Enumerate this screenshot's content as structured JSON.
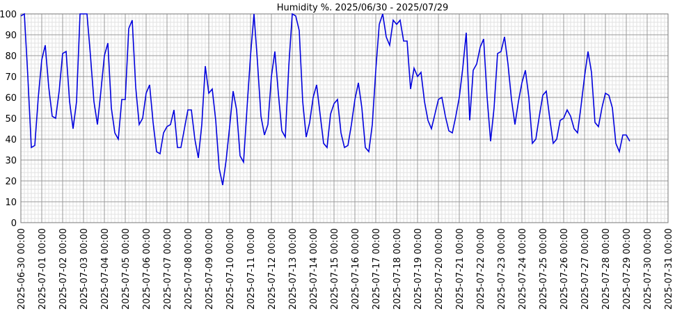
{
  "chart_data": {
    "type": "line",
    "title": "Humidity %. 2025/06/30 - 2025/07/29",
    "x": [
      "2025-06-30 00:00",
      "2025-06-30 04:00",
      "2025-06-30 08:00",
      "2025-06-30 12:00",
      "2025-06-30 16:00",
      "2025-06-30 20:00",
      "2025-07-01 00:00",
      "2025-07-01 04:00",
      "2025-07-01 08:00",
      "2025-07-01 12:00",
      "2025-07-01 16:00",
      "2025-07-01 20:00",
      "2025-07-02 00:00",
      "2025-07-02 04:00",
      "2025-07-02 08:00",
      "2025-07-02 12:00",
      "2025-07-02 16:00",
      "2025-07-02 20:00",
      "2025-07-03 00:00",
      "2025-07-03 04:00",
      "2025-07-03 08:00",
      "2025-07-03 12:00",
      "2025-07-03 16:00",
      "2025-07-03 20:00",
      "2025-07-04 00:00",
      "2025-07-04 04:00",
      "2025-07-04 08:00",
      "2025-07-04 12:00",
      "2025-07-04 16:00",
      "2025-07-04 20:00",
      "2025-07-05 00:00",
      "2025-07-05 04:00",
      "2025-07-05 08:00",
      "2025-07-05 12:00",
      "2025-07-05 16:00",
      "2025-07-05 20:00",
      "2025-07-06 00:00",
      "2025-07-06 04:00",
      "2025-07-06 08:00",
      "2025-07-06 12:00",
      "2025-07-06 16:00",
      "2025-07-06 20:00",
      "2025-07-07 00:00",
      "2025-07-07 04:00",
      "2025-07-07 08:00",
      "2025-07-07 12:00",
      "2025-07-07 16:00",
      "2025-07-07 20:00",
      "2025-07-08 00:00",
      "2025-07-08 04:00",
      "2025-07-08 08:00",
      "2025-07-08 12:00",
      "2025-07-08 16:00",
      "2025-07-08 20:00",
      "2025-07-09 00:00",
      "2025-07-09 04:00",
      "2025-07-09 08:00",
      "2025-07-09 12:00",
      "2025-07-09 16:00",
      "2025-07-09 20:00",
      "2025-07-10 00:00",
      "2025-07-10 04:00",
      "2025-07-10 08:00",
      "2025-07-10 12:00",
      "2025-07-10 16:00",
      "2025-07-10 20:00",
      "2025-07-11 00:00",
      "2025-07-11 04:00",
      "2025-07-11 08:00",
      "2025-07-11 12:00",
      "2025-07-11 16:00",
      "2025-07-11 20:00",
      "2025-07-12 00:00",
      "2025-07-12 04:00",
      "2025-07-12 08:00",
      "2025-07-12 12:00",
      "2025-07-12 16:00",
      "2025-07-12 20:00",
      "2025-07-13 00:00",
      "2025-07-13 04:00",
      "2025-07-13 08:00",
      "2025-07-13 12:00",
      "2025-07-13 16:00",
      "2025-07-13 20:00",
      "2025-07-14 00:00",
      "2025-07-14 04:00",
      "2025-07-14 08:00",
      "2025-07-14 12:00",
      "2025-07-14 16:00",
      "2025-07-14 20:00",
      "2025-07-15 00:00",
      "2025-07-15 04:00",
      "2025-07-15 08:00",
      "2025-07-15 12:00",
      "2025-07-15 16:00",
      "2025-07-15 20:00",
      "2025-07-16 00:00",
      "2025-07-16 04:00",
      "2025-07-16 08:00",
      "2025-07-16 12:00",
      "2025-07-16 16:00",
      "2025-07-16 20:00",
      "2025-07-17 00:00",
      "2025-07-17 04:00",
      "2025-07-17 08:00",
      "2025-07-17 12:00",
      "2025-07-17 16:00",
      "2025-07-17 20:00",
      "2025-07-18 00:00",
      "2025-07-18 04:00",
      "2025-07-18 08:00",
      "2025-07-18 12:00",
      "2025-07-18 16:00",
      "2025-07-18 20:00",
      "2025-07-19 00:00",
      "2025-07-19 04:00",
      "2025-07-19 08:00",
      "2025-07-19 12:00",
      "2025-07-19 16:00",
      "2025-07-19 20:00",
      "2025-07-20 00:00",
      "2025-07-20 04:00",
      "2025-07-20 08:00",
      "2025-07-20 12:00",
      "2025-07-20 16:00",
      "2025-07-20 20:00",
      "2025-07-21 00:00",
      "2025-07-21 04:00",
      "2025-07-21 08:00",
      "2025-07-21 12:00",
      "2025-07-21 16:00",
      "2025-07-21 20:00",
      "2025-07-22 00:00",
      "2025-07-22 04:00",
      "2025-07-22 08:00",
      "2025-07-22 12:00",
      "2025-07-22 16:00",
      "2025-07-22 20:00",
      "2025-07-23 00:00",
      "2025-07-23 04:00",
      "2025-07-23 08:00",
      "2025-07-23 12:00",
      "2025-07-23 16:00",
      "2025-07-23 20:00",
      "2025-07-24 00:00",
      "2025-07-24 04:00",
      "2025-07-24 08:00",
      "2025-07-24 12:00",
      "2025-07-24 16:00",
      "2025-07-24 20:00",
      "2025-07-25 00:00",
      "2025-07-25 04:00",
      "2025-07-25 08:00",
      "2025-07-25 12:00",
      "2025-07-25 16:00",
      "2025-07-25 20:00",
      "2025-07-26 00:00",
      "2025-07-26 04:00",
      "2025-07-26 08:00",
      "2025-07-26 12:00",
      "2025-07-26 16:00",
      "2025-07-26 20:00",
      "2025-07-27 00:00",
      "2025-07-27 04:00",
      "2025-07-27 08:00",
      "2025-07-27 12:00",
      "2025-07-27 16:00",
      "2025-07-27 20:00",
      "2025-07-28 00:00",
      "2025-07-28 04:00",
      "2025-07-28 08:00",
      "2025-07-28 12:00",
      "2025-07-28 16:00",
      "2025-07-28 20:00",
      "2025-07-29 00:00",
      "2025-07-29 04:00"
    ],
    "values": [
      99,
      100,
      70,
      36,
      37,
      60,
      78,
      85,
      65,
      51,
      50,
      63,
      81,
      82,
      58,
      45,
      58,
      100,
      100,
      100,
      80,
      58,
      47,
      63,
      80,
      86,
      55,
      43,
      40,
      59,
      59,
      93,
      97,
      65,
      47,
      50,
      62,
      66,
      48,
      34,
      33,
      43,
      46,
      47,
      54,
      36,
      36,
      45,
      54,
      54,
      40,
      31,
      47,
      75,
      62,
      64,
      49,
      26,
      18,
      30,
      46,
      63,
      54,
      32,
      29,
      55,
      80,
      100,
      77,
      51,
      42,
      47,
      70,
      82,
      62,
      44,
      41,
      75,
      100,
      99,
      92,
      58,
      41,
      48,
      60,
      66,
      52,
      38,
      36,
      52,
      57,
      59,
      43,
      36,
      37,
      47,
      59,
      67,
      55,
      36,
      34,
      47,
      73,
      95,
      100,
      89,
      85,
      97,
      95,
      97,
      87,
      87,
      64,
      74,
      70,
      72,
      58,
      49,
      45,
      52,
      59,
      60,
      51,
      44,
      43,
      51,
      60,
      74,
      91,
      49,
      73,
      76,
      84,
      88,
      60,
      39,
      55,
      81,
      82,
      89,
      76,
      59,
      47,
      58,
      67,
      73,
      60,
      38,
      40,
      51,
      61,
      63,
      50,
      38,
      40,
      49,
      50,
      54,
      51,
      45,
      43,
      56,
      70,
      82,
      72,
      48,
      46,
      55,
      62,
      61,
      55,
      38,
      34,
      42,
      42,
      39
    ],
    "color": "#0000dd",
    "xlim": [
      "2025-06-30 00:00",
      "2025-07-31 00:00"
    ],
    "xticks": [
      "2025-06-30 00:00",
      "2025-07-01 00:00",
      "2025-07-02 00:00",
      "2025-07-03 00:00",
      "2025-07-04 00:00",
      "2025-07-05 00:00",
      "2025-07-06 00:00",
      "2025-07-07 00:00",
      "2025-07-08 00:00",
      "2025-07-09 00:00",
      "2025-07-10 00:00",
      "2025-07-11 00:00",
      "2025-07-12 00:00",
      "2025-07-13 00:00",
      "2025-07-14 00:00",
      "2025-07-15 00:00",
      "2025-07-16 00:00",
      "2025-07-17 00:00",
      "2025-07-18 00:00",
      "2025-07-19 00:00",
      "2025-07-20 00:00",
      "2025-07-21 00:00",
      "2025-07-22 00:00",
      "2025-07-23 00:00",
      "2025-07-24 00:00",
      "2025-07-25 00:00",
      "2025-07-26 00:00",
      "2025-07-27 00:00",
      "2025-07-28 00:00",
      "2025-07-29 00:00",
      "2025-07-30 00:00",
      "2025-07-31 00:00"
    ],
    "ylim": [
      0,
      100
    ],
    "yticks": [
      0,
      10,
      20,
      30,
      40,
      50,
      60,
      70,
      80,
      90,
      100
    ],
    "grid": true
  }
}
